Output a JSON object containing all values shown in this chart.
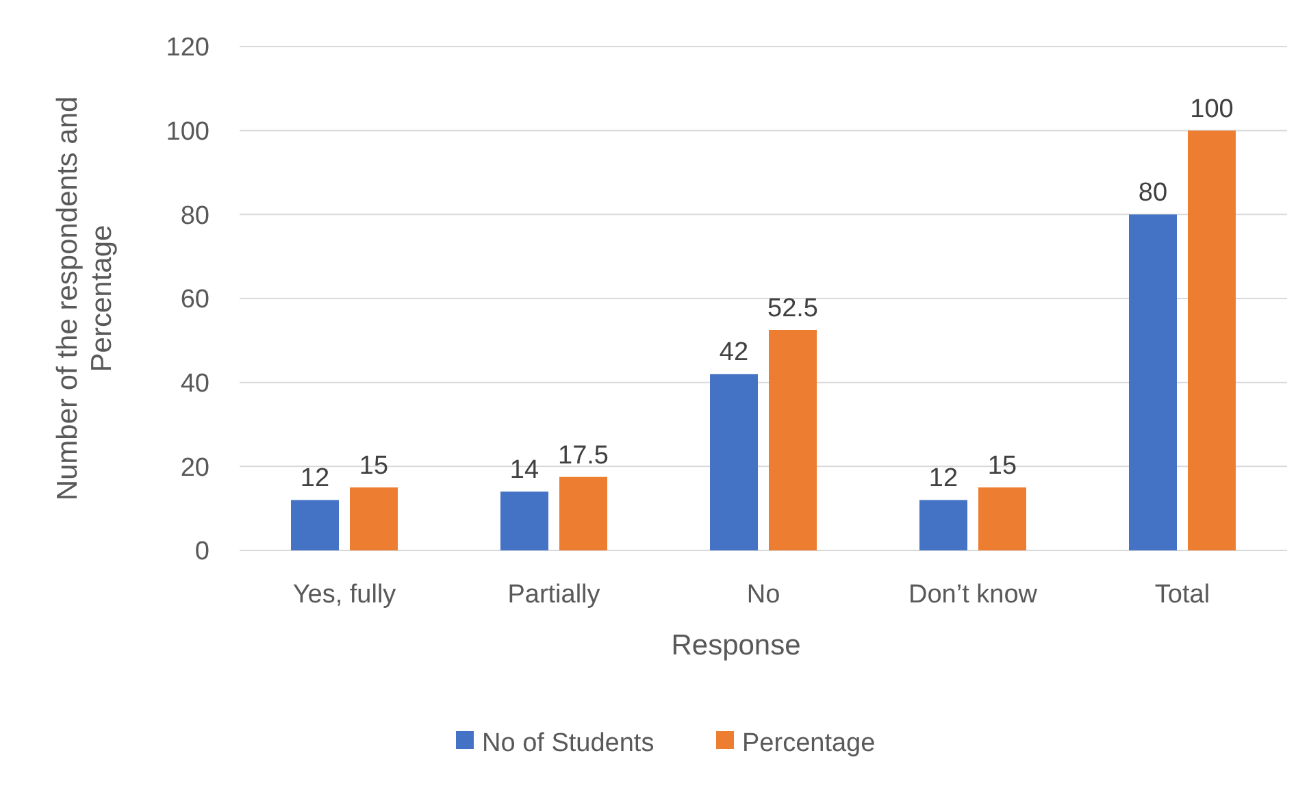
{
  "chart_data": {
    "type": "bar",
    "xlabel": "Response",
    "ylabel": "Number of the respondents and Percentage",
    "categories": [
      "Yes, fully",
      "Partially",
      "No",
      "Don’t know",
      "Total"
    ],
    "series": [
      {
        "name": "No of Students",
        "color": "#4472c4",
        "values": [
          12,
          14,
          42,
          12,
          80
        ]
      },
      {
        "name": "Percentage",
        "color": "#ed7d31",
        "values": [
          15,
          17.5,
          52.5,
          15,
          100
        ]
      }
    ],
    "ylim": [
      0,
      120
    ],
    "yticks": [
      0,
      20,
      40,
      60,
      80,
      100,
      120
    ],
    "grid": "y",
    "legend": "bottom",
    "data_labels": true
  }
}
